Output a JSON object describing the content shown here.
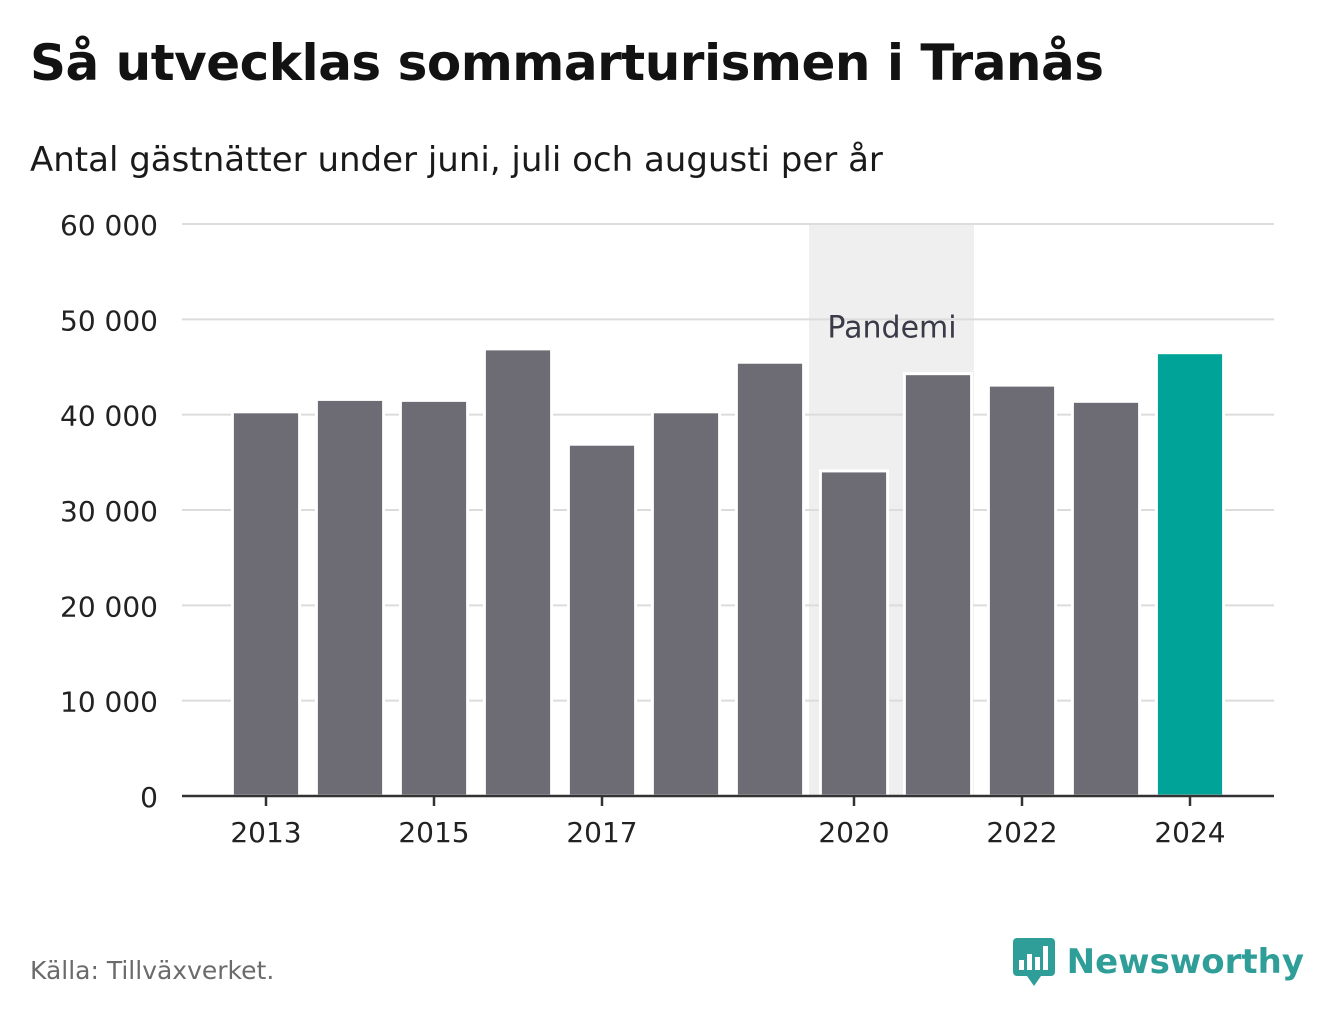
{
  "title": "Så utvecklas sommarturismen i Tranås",
  "subtitle": "Antal gästnätter under juni, juli och augusti per år",
  "source": "Källa: Tillväxverket.",
  "brand": {
    "name": "Newsworthy",
    "icon": "bar-chart-speech-bubble-icon",
    "color": "#2f9e98"
  },
  "chart_data": {
    "type": "bar",
    "categories": [
      "2013",
      "2014",
      "2015",
      "2016",
      "2017",
      "2018",
      "2019",
      "2020",
      "2021",
      "2022",
      "2023",
      "2024"
    ],
    "values": [
      40300,
      41600,
      41500,
      46900,
      36900,
      40300,
      45500,
      34100,
      44300,
      43100,
      41400,
      46500
    ],
    "xtick_labels": [
      "2013",
      "2015",
      "2017",
      "2020",
      "2022",
      "2024"
    ],
    "yticks": [
      0,
      10000,
      20000,
      30000,
      40000,
      50000,
      60000
    ],
    "ytick_labels": [
      "0",
      "10 000",
      "20 000",
      "30 000",
      "40 000",
      "50 000",
      "60 000"
    ],
    "ylim": [
      0,
      60000
    ],
    "grid": true,
    "colors": {
      "bar": "#6d6c74",
      "highlight": "#00a398",
      "band": "#efefef",
      "grid": "#dcdcdc",
      "axis": "#333333"
    },
    "highlight_category": "2024",
    "annotation": {
      "label": "Pandemi",
      "from": "2020",
      "to": "2021"
    }
  }
}
